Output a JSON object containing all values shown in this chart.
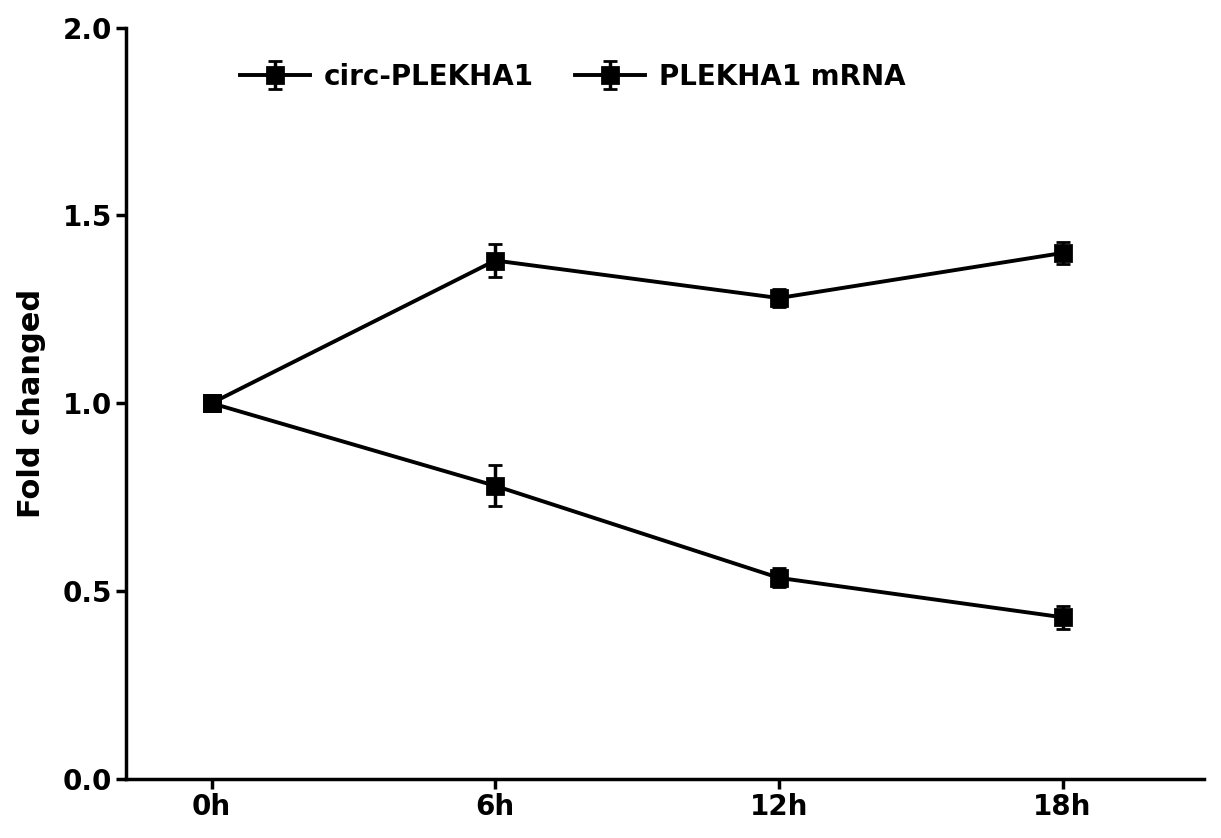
{
  "x_values": [
    0,
    1,
    2,
    3
  ],
  "x_labels": [
    "0h",
    "6h",
    "12h",
    "18h"
  ],
  "series": [
    {
      "label": "circ-PLEKHA1",
      "y": [
        1.0,
        1.38,
        1.28,
        1.4
      ],
      "yerr": [
        0.02,
        0.045,
        0.025,
        0.03
      ],
      "color": "#000000",
      "marker": "s",
      "linewidth": 2.8,
      "markersize": 11
    },
    {
      "label": "PLEKHA1 mRNA",
      "y": [
        1.0,
        0.78,
        0.535,
        0.43
      ],
      "yerr": [
        0.02,
        0.055,
        0.025,
        0.03
      ],
      "color": "#000000",
      "marker": "s",
      "linewidth": 2.8,
      "markersize": 11
    }
  ],
  "ylabel": "Fold changed",
  "ylim": [
    0.0,
    2.0
  ],
  "yticks": [
    0.0,
    0.5,
    1.0,
    1.5,
    2.0
  ],
  "xlim": [
    -0.3,
    3.5
  ],
  "background_color": "#ffffff",
  "legend_fontsize": 20,
  "axis_label_fontsize": 22,
  "tick_fontsize": 20
}
